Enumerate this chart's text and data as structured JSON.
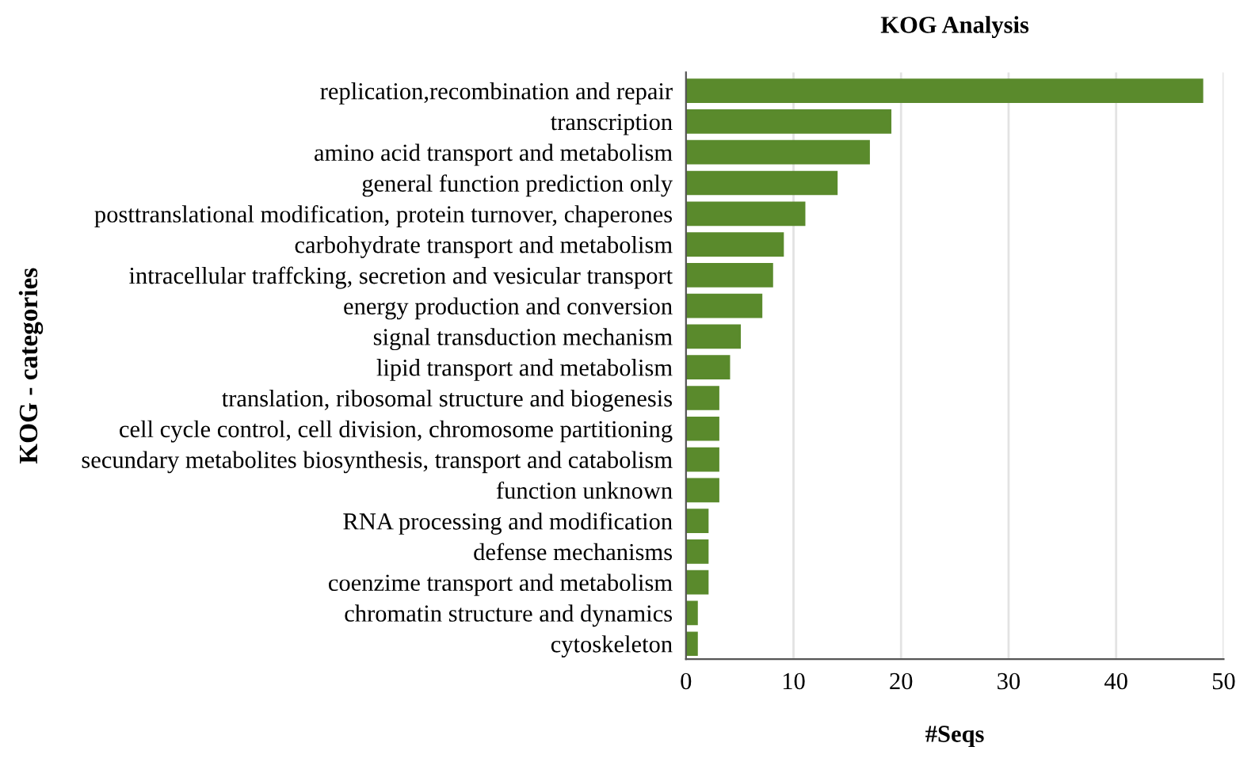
{
  "chart_data": {
    "type": "bar",
    "orientation": "horizontal",
    "title": "KOG Analysis",
    "xlabel": "#Seqs",
    "ylabel": "KOG - categories",
    "categories": [
      "replication,recombination and repair",
      "transcription",
      "amino acid transport and metabolism",
      "general function prediction only",
      "posttranslational modification, protein turnover, chaperones",
      "carbohydrate transport and metabolism",
      "intracellular traffcking, secretion and vesicular transport",
      "energy production and conversion",
      "signal transduction mechanism",
      "lipid transport and metabolism",
      "translation, ribosomal structure and biogenesis",
      "cell cycle control, cell division, chromosome partitioning",
      "secundary metabolites biosynthesis, transport and catabolism",
      "function unknown",
      "RNA processing and modification",
      "defense mechanisms",
      "coenzime transport and metabolism",
      "chromatin structure and dynamics",
      "cytoskeleton"
    ],
    "values": [
      48,
      19,
      17,
      14,
      11,
      9,
      8,
      7,
      5,
      4,
      3,
      3,
      3,
      3,
      2,
      2,
      2,
      1,
      1
    ],
    "color": "#5a8a2c",
    "xlim": [
      0,
      50
    ],
    "xticks": [
      0,
      10,
      20,
      30,
      40,
      50
    ],
    "grid": "x",
    "legend": false
  }
}
